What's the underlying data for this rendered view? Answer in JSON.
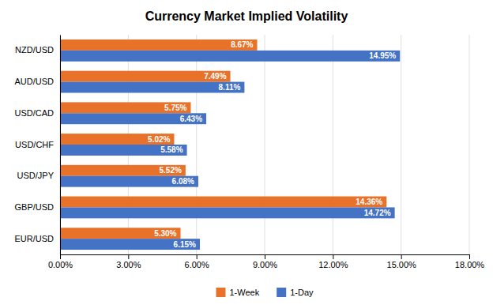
{
  "chart_data": {
    "type": "bar",
    "orientation": "horizontal",
    "title": "Currency Market Implied Volatility",
    "categories": [
      "NZD/USD",
      "AUD/USD",
      "USD/CAD",
      "USD/CHF",
      "USD/JPY",
      "GBP/USD",
      "EUR/USD"
    ],
    "series": [
      {
        "name": "1-Week",
        "color": "#E8722A",
        "values": [
          8.67,
          7.49,
          5.75,
          5.02,
          5.52,
          14.36,
          5.3
        ],
        "value_labels": [
          "8.67%",
          "7.49%",
          "5.75%",
          "5.02%",
          "5.52%",
          "14.36%",
          "5.30%"
        ]
      },
      {
        "name": "1-Day",
        "color": "#4472C4",
        "values": [
          14.95,
          8.11,
          6.43,
          5.58,
          6.08,
          14.72,
          6.15
        ],
        "value_labels": [
          "14.95%",
          "8.11%",
          "6.43%",
          "5.58%",
          "6.08%",
          "14.72%",
          "6.15%"
        ]
      }
    ],
    "xlim": [
      0,
      18
    ],
    "xticks": [
      {
        "value": 0,
        "label": "0.00%"
      },
      {
        "value": 3,
        "label": "3.00%"
      },
      {
        "value": 6,
        "label": "6.00%"
      },
      {
        "value": 9,
        "label": "9.00%"
      },
      {
        "value": 12,
        "label": "12.00%"
      },
      {
        "value": 15,
        "label": "15.00%"
      },
      {
        "value": 18,
        "label": "18.00%"
      }
    ],
    "grid": true,
    "data_labels": true,
    "legend": "bottom"
  }
}
